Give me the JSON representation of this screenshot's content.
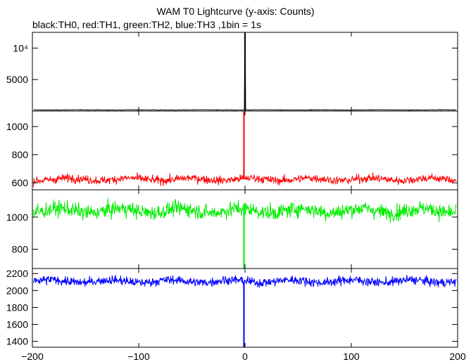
{
  "title": "WAM T0 Lightcurve (y-axis: Counts)",
  "subtitle": "black:TH0, red:TH1, green:TH2, blue:TH3 ,1bin = 1s",
  "chart_data": {
    "type": "line",
    "xlim": [
      -200,
      200
    ],
    "x_ticks": [
      -200,
      -100,
      0,
      100,
      200
    ],
    "x_tick_labels": [
      "−200",
      "−100",
      "0",
      "100",
      "200"
    ],
    "grid": false,
    "legend": "none",
    "panels": [
      {
        "name": "TH0",
        "color": "#000000",
        "ylim": [
          0,
          12500
        ],
        "y_ticks": [
          5000,
          10000
        ],
        "y_tick_labels": [
          "5000",
          "10⁴"
        ],
        "baseline": 180,
        "noise": 40,
        "spike": {
          "x": 0,
          "peak": 12500
        }
      },
      {
        "name": "TH1",
        "color": "#ff0000",
        "ylim": [
          550,
          1110
        ],
        "y_ticks": [
          600,
          800,
          1000
        ],
        "y_tick_labels": [
          "600",
          "800",
          "1000"
        ],
        "baseline": 625,
        "noise": 25,
        "spike": {
          "x": -1,
          "peak": 1110
        }
      },
      {
        "name": "TH2",
        "color": "#00ee00",
        "ylim": [
          680,
          1170
        ],
        "y_ticks": [
          800,
          1000
        ],
        "y_tick_labels": [
          "800",
          "1000"
        ],
        "baseline": 1040,
        "noise": 40,
        "spike": {
          "x": -1,
          "peak": 680
        }
      },
      {
        "name": "TH3",
        "color": "#0000ff",
        "ylim": [
          1330,
          2260
        ],
        "y_ticks": [
          1400,
          1600,
          1800,
          2000,
          2200
        ],
        "y_tick_labels": [
          "1400",
          "1600",
          "1800",
          "2000",
          "2200"
        ],
        "baseline": 2110,
        "noise": 45,
        "spike": {
          "x": -1,
          "peak": 1330
        }
      }
    ]
  }
}
